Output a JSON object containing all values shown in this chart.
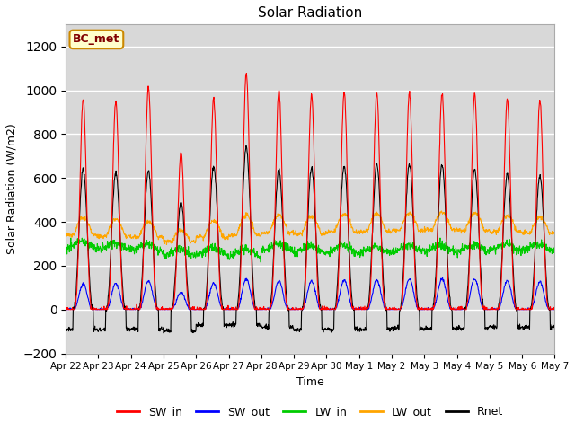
{
  "title": "Solar Radiation",
  "xlabel": "Time",
  "ylabel": "Solar Radiation (W/m2)",
  "ylim": [
    -200,
    1300
  ],
  "yticks": [
    -200,
    0,
    200,
    400,
    600,
    800,
    1000,
    1200
  ],
  "background_color": "#ffffff",
  "plot_bg_color": "#d8d8d8",
  "grid_color": "#ffffff",
  "annotation_text": "BC_met",
  "annotation_bg": "#ffffcc",
  "annotation_border": "#cc8800",
  "colors": {
    "SW_in": "#ff0000",
    "SW_out": "#0000ff",
    "LW_in": "#00cc00",
    "LW_out": "#ffa500",
    "Rnet": "#000000"
  },
  "n_days": 15,
  "x_tick_labels": [
    "Apr 22",
    "Apr 23",
    "Apr 24",
    "Apr 25",
    "Apr 26",
    "Apr 27",
    "Apr 28",
    "Apr 29",
    "Apr 30",
    "May 1",
    "May 2",
    "May 3",
    "May 4",
    "May 5",
    "May 6",
    "May 7"
  ],
  "SW_in_peaks": [
    960,
    950,
    1015,
    720,
    960,
    1080,
    1000,
    980,
    985,
    985,
    985,
    985,
    985,
    960,
    955
  ],
  "SW_out_peaks": [
    115,
    120,
    130,
    80,
    120,
    140,
    130,
    130,
    135,
    135,
    140,
    140,
    140,
    130,
    125
  ],
  "LW_in_day": [
    295,
    290,
    285,
    260,
    265,
    260,
    285,
    275,
    275,
    275,
    280,
    280,
    280,
    285,
    285
  ],
  "LW_out_base": [
    340,
    335,
    330,
    310,
    330,
    340,
    350,
    345,
    355,
    355,
    360,
    365,
    360,
    355,
    350
  ],
  "LW_out_peak_add": [
    80,
    75,
    70,
    50,
    75,
    90,
    80,
    80,
    80,
    80,
    80,
    80,
    80,
    75,
    70
  ],
  "Rnet_peaks": [
    640,
    625,
    635,
    490,
    655,
    740,
    640,
    645,
    655,
    665,
    665,
    660,
    640,
    615,
    610
  ],
  "Rnet_night": [
    -90,
    -90,
    -90,
    -100,
    -70,
    -70,
    -80,
    -90,
    -90,
    -90,
    -85,
    -85,
    -85,
    -80,
    -80
  ]
}
